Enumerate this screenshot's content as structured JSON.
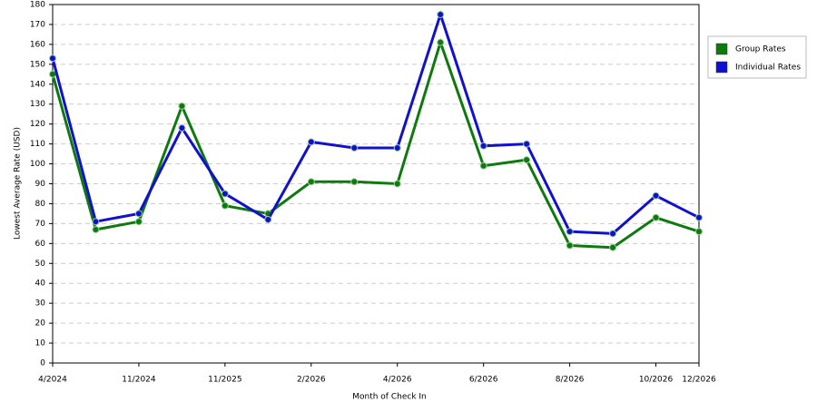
{
  "chart_data": {
    "type": "line",
    "x_label": "Month of Check In",
    "y_label": "Lowest Average Rate (USD)",
    "categories": [
      "4/2024",
      null,
      "11/2024",
      null,
      "11/2025",
      null,
      "2/2026",
      null,
      "4/2026",
      null,
      "6/2026",
      null,
      "8/2026",
      null,
      "10/2026",
      "12/2026"
    ],
    "series": [
      {
        "name": "Group Rates",
        "color": "#0e7a0e",
        "values": [
          145,
          67,
          71,
          129,
          79,
          75,
          91,
          91,
          90,
          161,
          99,
          102,
          59,
          58,
          73,
          66
        ]
      },
      {
        "name": "Individual Rates",
        "color": "#1010d0",
        "values": [
          153,
          71,
          75,
          118,
          85,
          72,
          111,
          108,
          108,
          175,
          109,
          110,
          66,
          65,
          84,
          73
        ]
      }
    ],
    "ylim": [
      0,
      180
    ],
    "yticks": [
      0,
      10,
      20,
      30,
      40,
      50,
      60,
      70,
      80,
      90,
      100,
      110,
      120,
      130,
      140,
      150,
      160,
      170,
      180
    ],
    "grid": true,
    "legend": "right"
  }
}
